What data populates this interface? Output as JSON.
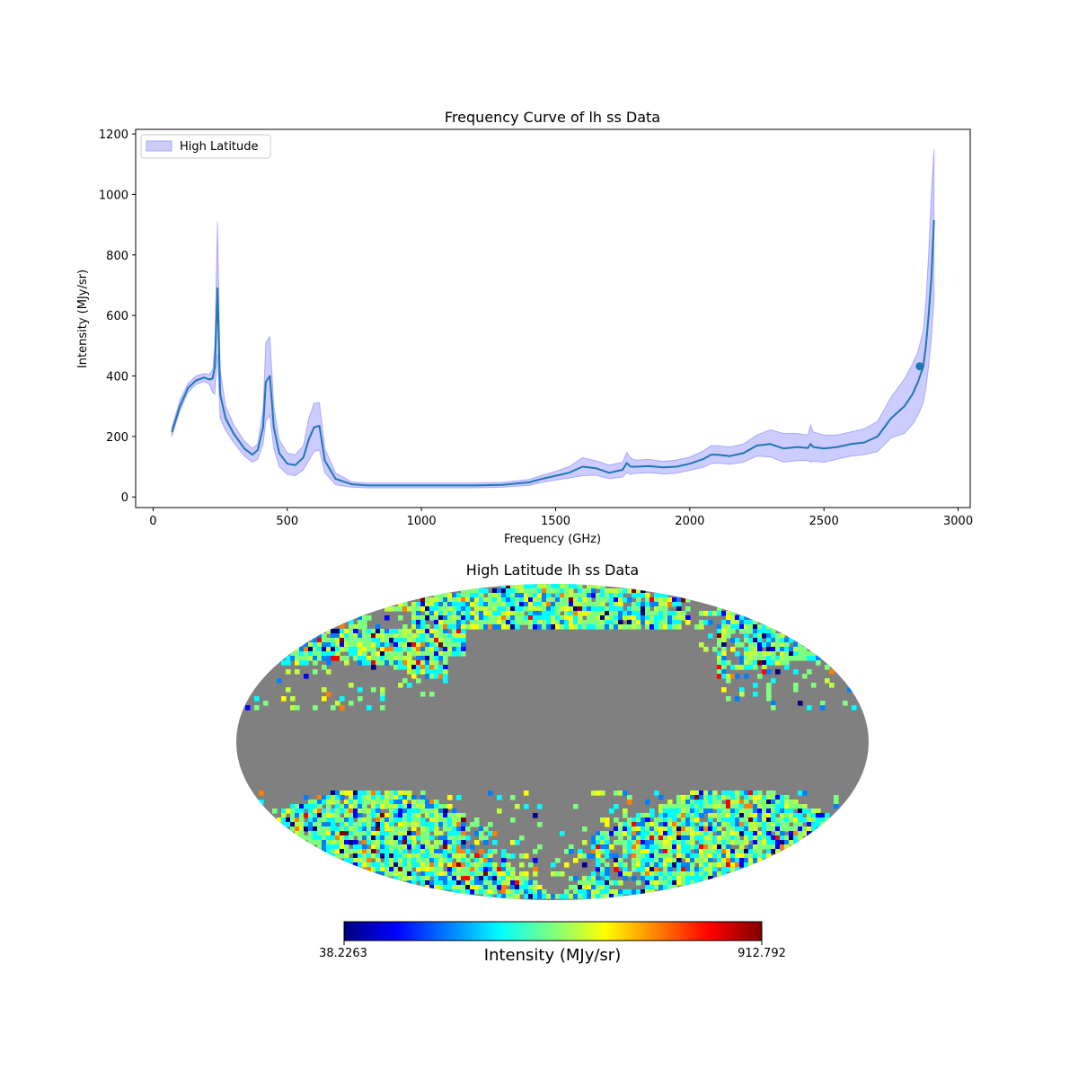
{
  "chart_data": [
    {
      "type": "line",
      "title": "Frequency Curve of lh ss Data",
      "xlabel": "Frequency (GHz)",
      "ylabel": "Intensity (MJy/sr)",
      "xlim": [
        -65,
        3045
      ],
      "ylim": [
        -35,
        1215
      ],
      "xticks": [
        0,
        500,
        1000,
        1500,
        2000,
        2500,
        3000
      ],
      "yticks": [
        0,
        200,
        400,
        600,
        800,
        1000,
        1200
      ],
      "legend": {
        "label": "High Latitude",
        "placement": "top-left",
        "fill": "#ccccf7",
        "edge": "#aaaaf0"
      },
      "line_color": "#1f77b4",
      "band_color": "#0000ff",
      "marker": {
        "x": 2857,
        "y": 432
      },
      "series": [
        {
          "name": "mean",
          "x": [
            70,
            100,
            130,
            160,
            190,
            210,
            222,
            230,
            240,
            250,
            270,
            300,
            340,
            370,
            390,
            410,
            420,
            435,
            450,
            470,
            500,
            530,
            560,
            580,
            600,
            620,
            640,
            680,
            740,
            800,
            900,
            1000,
            1100,
            1200,
            1300,
            1400,
            1450,
            1500,
            1550,
            1600,
            1650,
            1700,
            1750,
            1765,
            1780,
            1800,
            1850,
            1900,
            1950,
            2000,
            2050,
            2080,
            2100,
            2150,
            2200,
            2250,
            2300,
            2350,
            2400,
            2440,
            2450,
            2460,
            2500,
            2550,
            2600,
            2650,
            2700,
            2750,
            2800,
            2830,
            2850,
            2870,
            2880,
            2890,
            2900,
            2910
          ],
          "y": [
            215,
            300,
            360,
            385,
            395,
            388,
            392,
            430,
            690,
            340,
            260,
            210,
            160,
            140,
            155,
            230,
            380,
            400,
            230,
            145,
            110,
            105,
            130,
            190,
            230,
            235,
            120,
            60,
            42,
            38,
            38,
            38,
            38,
            38,
            40,
            48,
            60,
            70,
            80,
            100,
            95,
            80,
            90,
            112,
            100,
            100,
            102,
            98,
            100,
            110,
            125,
            140,
            140,
            135,
            145,
            170,
            175,
            160,
            165,
            162,
            175,
            165,
            160,
            165,
            175,
            180,
            200,
            260,
            300,
            340,
            380,
            430,
            500,
            600,
            720,
            915
          ]
        },
        {
          "name": "upper",
          "x": [
            70,
            100,
            130,
            160,
            190,
            210,
            222,
            230,
            240,
            250,
            270,
            300,
            340,
            370,
            390,
            410,
            420,
            435,
            450,
            470,
            500,
            530,
            560,
            580,
            600,
            620,
            640,
            680,
            740,
            800,
            900,
            1000,
            1100,
            1200,
            1300,
            1400,
            1450,
            1500,
            1550,
            1600,
            1650,
            1700,
            1750,
            1765,
            1780,
            1800,
            1850,
            1900,
            1950,
            2000,
            2050,
            2080,
            2100,
            2150,
            2200,
            2250,
            2300,
            2350,
            2400,
            2440,
            2450,
            2460,
            2500,
            2550,
            2600,
            2650,
            2700,
            2750,
            2800,
            2830,
            2850,
            2870,
            2880,
            2890,
            2900,
            2910
          ],
          "y": [
            230,
            320,
            375,
            400,
            408,
            405,
            420,
            500,
            910,
            420,
            300,
            240,
            185,
            160,
            175,
            290,
            510,
            530,
            300,
            190,
            145,
            140,
            170,
            260,
            310,
            312,
            160,
            80,
            50,
            46,
            46,
            46,
            46,
            46,
            48,
            58,
            72,
            85,
            100,
            130,
            120,
            105,
            115,
            148,
            128,
            122,
            124,
            118,
            122,
            132,
            152,
            170,
            170,
            165,
            175,
            205,
            222,
            210,
            210,
            205,
            238,
            215,
            205,
            205,
            215,
            225,
            250,
            330,
            390,
            440,
            480,
            550,
            650,
            800,
            1000,
            1150
          ]
        },
        {
          "name": "lower",
          "x": [
            70,
            100,
            130,
            160,
            190,
            210,
            222,
            230,
            240,
            250,
            270,
            300,
            340,
            370,
            390,
            410,
            420,
            435,
            450,
            470,
            500,
            530,
            560,
            580,
            600,
            620,
            640,
            680,
            740,
            800,
            900,
            1000,
            1100,
            1200,
            1300,
            1400,
            1450,
            1500,
            1550,
            1600,
            1650,
            1700,
            1750,
            1765,
            1780,
            1800,
            1850,
            1900,
            1950,
            2000,
            2050,
            2080,
            2100,
            2150,
            2200,
            2250,
            2300,
            2350,
            2400,
            2440,
            2450,
            2460,
            2500,
            2550,
            2600,
            2650,
            2700,
            2750,
            2800,
            2830,
            2850,
            2870,
            2880,
            2890,
            2900,
            2910
          ],
          "y": [
            200,
            285,
            345,
            372,
            382,
            372,
            345,
            340,
            470,
            260,
            220,
            180,
            135,
            115,
            125,
            175,
            250,
            270,
            160,
            100,
            75,
            70,
            90,
            120,
            150,
            155,
            80,
            40,
            32,
            30,
            30,
            30,
            30,
            30,
            32,
            38,
            48,
            56,
            62,
            70,
            72,
            60,
            66,
            80,
            75,
            78,
            80,
            76,
            78,
            88,
            98,
            110,
            112,
            108,
            115,
            135,
            132,
            115,
            120,
            120,
            115,
            118,
            115,
            125,
            135,
            140,
            150,
            195,
            210,
            240,
            270,
            310,
            360,
            430,
            520,
            650
          ]
        }
      ]
    },
    {
      "type": "heatmap",
      "title": "High Latitude lh ss Data",
      "projection": "Mollweide",
      "mask_color": "#808080",
      "colormap": [
        "#00007f",
        "#0000ff",
        "#007fff",
        "#00ffff",
        "#7fff7f",
        "#ffff00",
        "#ff7f00",
        "#ff0000",
        "#7f0000"
      ],
      "colorbar": {
        "min_label": "38.2263",
        "max_label": "912.792",
        "label": "Intensity (MJy/sr)"
      }
    }
  ]
}
